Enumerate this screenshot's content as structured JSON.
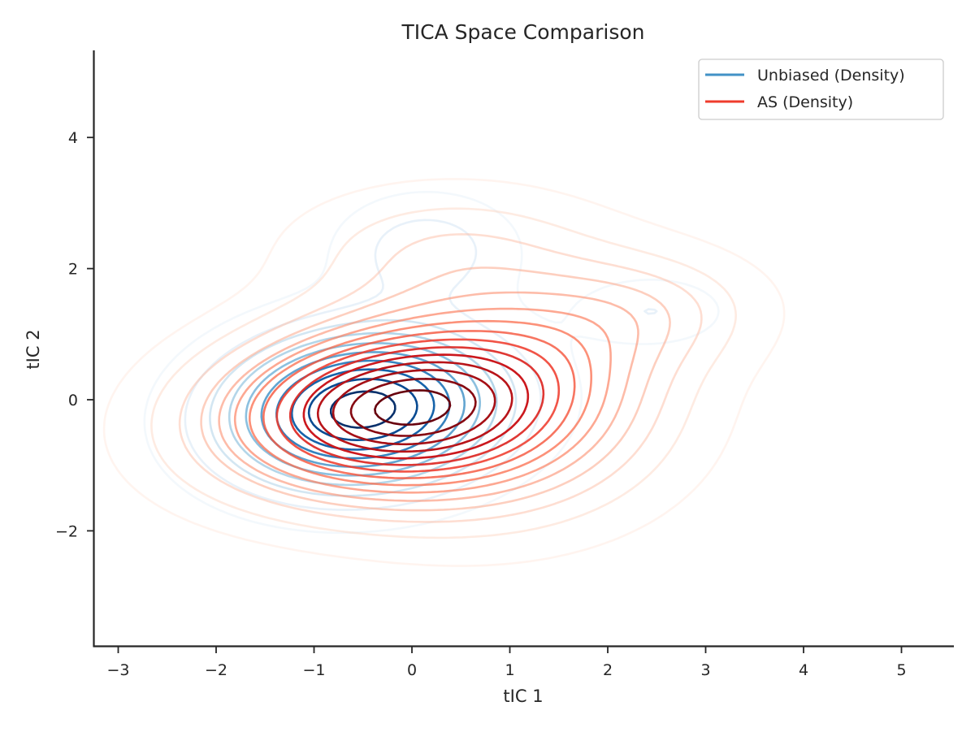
{
  "chart_data": {
    "type": "contour",
    "title": "TICA Space Comparison",
    "xlabel": "tIC 1",
    "ylabel": "tIC 2",
    "xlim": [
      -3.25,
      5.55
    ],
    "ylim": [
      -3.75,
      5.3
    ],
    "xticks": [
      -3,
      -2,
      -1,
      0,
      1,
      2,
      3,
      4,
      5
    ],
    "xtick_labels": [
      "−3",
      "−2",
      "−1",
      "0",
      "1",
      "2",
      "3",
      "4",
      "5"
    ],
    "yticks": [
      -2,
      0,
      2,
      4
    ],
    "ytick_labels": [
      "−2",
      "0",
      "2",
      "4"
    ],
    "grid": false,
    "legend_position": "top-right",
    "series": [
      {
        "name": "Unbiased (Density)",
        "color": "#4292c6",
        "colormap": "Blues",
        "levels": 10,
        "components": [
          {
            "x": -0.5,
            "y": -0.15,
            "sx": 0.95,
            "sy": 0.8,
            "rho": 0.1,
            "w": 1.0
          },
          {
            "x": 0.15,
            "y": 2.3,
            "sx": 0.6,
            "sy": 0.55,
            "rho": 0.0,
            "w": 0.22
          },
          {
            "x": 2.45,
            "y": 1.35,
            "sx": 0.5,
            "sy": 0.35,
            "rho": 0.0,
            "w": 0.16
          }
        ]
      },
      {
        "name": "AS (Density)",
        "color": "#ef3b2c",
        "colormap": "Reds",
        "levels": 15,
        "components": [
          {
            "x": -0.4,
            "y": -0.15,
            "sx": 1.15,
            "sy": 0.85,
            "rho": 0.15,
            "w": 1.0
          },
          {
            "x": 0.75,
            "y": -0.25,
            "sx": 1.15,
            "sy": 1.05,
            "rho": 0.0,
            "w": 0.55
          },
          {
            "x": 0.4,
            "y": 2.3,
            "sx": 1.05,
            "sy": 0.65,
            "rho": 0.0,
            "w": 0.22
          },
          {
            "x": 2.45,
            "y": 1.4,
            "sx": 0.8,
            "sy": 0.6,
            "rho": 0.0,
            "w": 0.2
          },
          {
            "x": 1.5,
            "y": 0.9,
            "sx": 0.9,
            "sy": 0.8,
            "rho": 0.0,
            "w": 0.18
          }
        ]
      }
    ]
  }
}
